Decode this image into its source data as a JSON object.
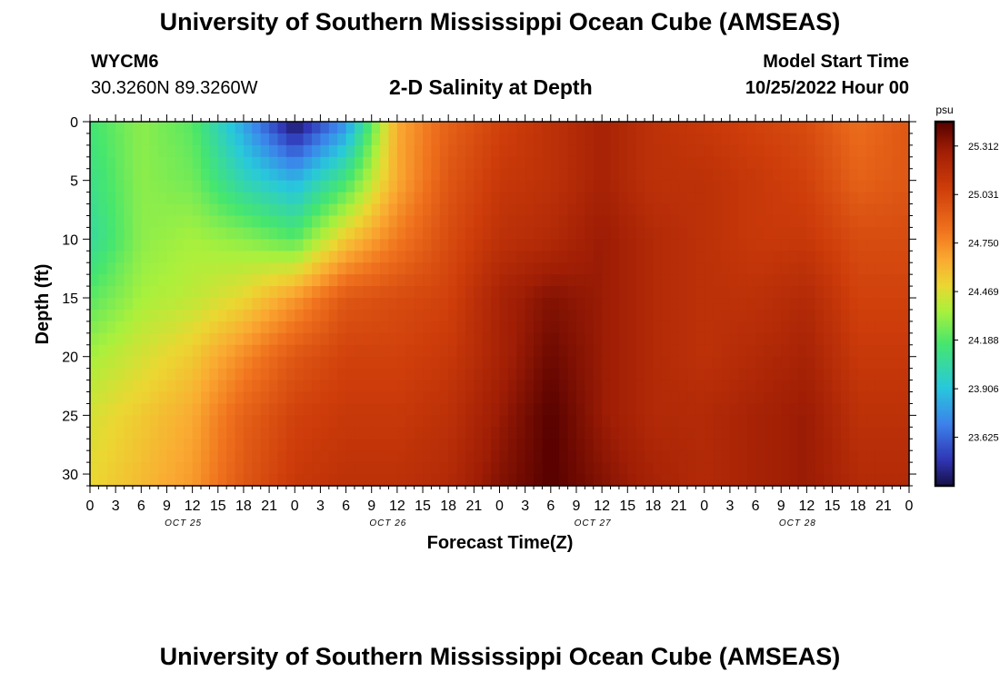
{
  "header": {
    "title": "University of Southern Mississippi Ocean Cube (AMSEAS)",
    "station": "WYCM6",
    "coords": "30.3260N  89.3260W",
    "subtitle": "2-D Salinity at Depth",
    "model_start_label": "Model Start Time",
    "model_start_value": "10/25/2022 Hour 00"
  },
  "footer": {
    "title": "University of Southern Mississippi Ocean Cube (AMSEAS)"
  },
  "chart_data": {
    "type": "heatmap",
    "title": "2-D Salinity at Depth",
    "xlabel": "Forecast Time(Z)",
    "ylabel": "Depth (ft)",
    "x_tick_labels": [
      "0",
      "3",
      "6",
      "9",
      "12",
      "15",
      "18",
      "21",
      "0",
      "3",
      "6",
      "9",
      "12",
      "15",
      "18",
      "21",
      "0",
      "3",
      "6",
      "9",
      "12",
      "15",
      "18",
      "21",
      "0",
      "3",
      "6",
      "9",
      "12",
      "15",
      "18",
      "21",
      "0"
    ],
    "day_labels": [
      "OCT 25",
      "OCT 26",
      "OCT 27",
      "OCT 28"
    ],
    "x_range_hours": [
      0,
      96
    ],
    "y_ticks": [
      0,
      5,
      10,
      15,
      20,
      25,
      30
    ],
    "y_range_ft": [
      0,
      31
    ],
    "colorbar": {
      "unit": "psu",
      "min": 23.344,
      "max": 25.453,
      "tick_labels": [
        "25.312",
        "25.031",
        "24.750",
        "24.469",
        "24.188",
        "23.906",
        "23.625"
      ],
      "tick_values": [
        25.312,
        25.031,
        24.75,
        24.469,
        24.188,
        23.906,
        23.625
      ]
    },
    "hours": [
      0,
      6,
      12,
      18,
      24,
      30,
      36,
      42,
      48,
      54,
      60,
      66,
      72,
      78,
      84,
      90,
      96
    ],
    "depths_ft": [
      0,
      5,
      10,
      15,
      20,
      25,
      31
    ],
    "salinity_psu": [
      [
        24.15,
        24.3,
        24.2,
        23.8,
        23.35,
        23.75,
        24.65,
        24.9,
        25.05,
        25.15,
        25.25,
        25.15,
        25.1,
        25.05,
        25.0,
        24.85,
        24.95
      ],
      [
        24.1,
        24.3,
        24.25,
        24.0,
        23.85,
        24.15,
        24.65,
        24.95,
        25.1,
        25.15,
        25.25,
        25.15,
        25.15,
        25.1,
        25.05,
        24.9,
        24.95
      ],
      [
        24.05,
        24.3,
        24.35,
        24.3,
        24.2,
        24.55,
        24.8,
        25.0,
        25.15,
        25.2,
        25.3,
        25.2,
        25.15,
        25.1,
        25.1,
        25.0,
        25.0
      ],
      [
        24.2,
        24.35,
        24.4,
        24.5,
        24.7,
        24.95,
        25.0,
        25.05,
        25.25,
        25.35,
        25.3,
        25.2,
        25.15,
        25.15,
        25.2,
        25.05,
        25.05
      ],
      [
        24.35,
        24.45,
        24.55,
        24.75,
        24.95,
        25.05,
        25.05,
        25.1,
        25.25,
        25.4,
        25.3,
        25.2,
        25.15,
        25.2,
        25.25,
        25.1,
        25.1
      ],
      [
        24.45,
        24.55,
        24.65,
        24.9,
        25.05,
        25.1,
        25.1,
        25.15,
        25.3,
        25.45,
        25.3,
        25.2,
        25.2,
        25.25,
        25.3,
        25.15,
        25.15
      ],
      [
        24.5,
        24.6,
        24.7,
        24.95,
        25.1,
        25.15,
        25.15,
        25.2,
        25.35,
        25.45,
        25.35,
        25.25,
        25.2,
        25.25,
        25.3,
        25.2,
        25.2
      ]
    ]
  }
}
